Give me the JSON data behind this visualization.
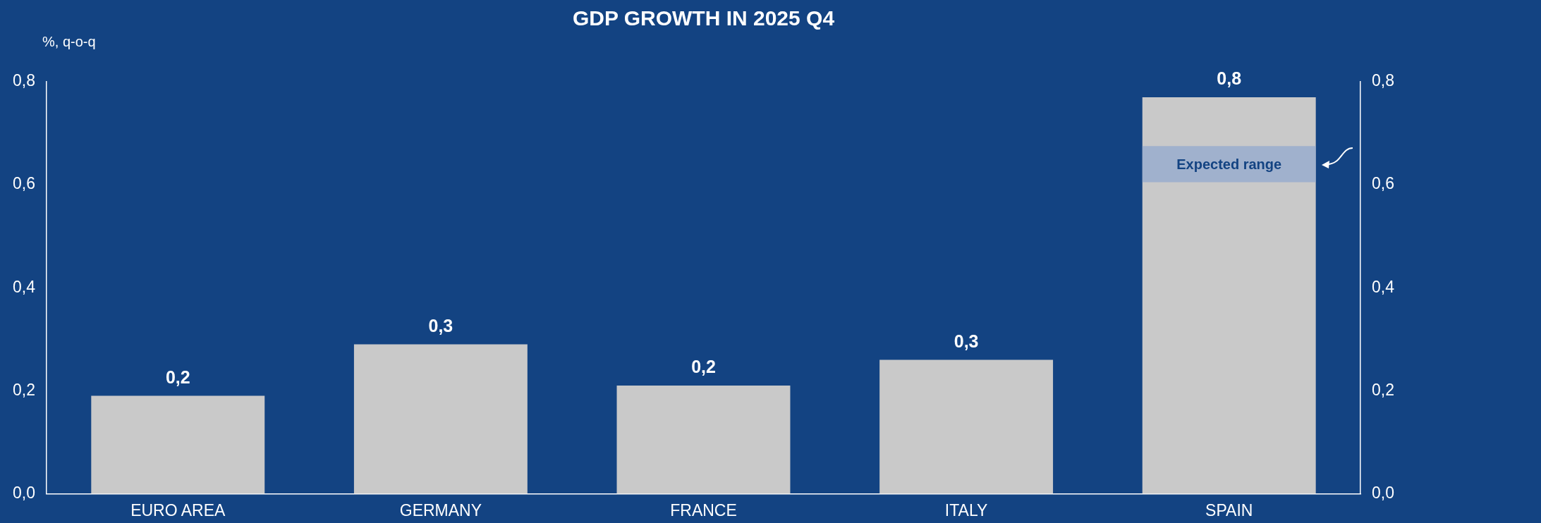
{
  "chart_data": {
    "type": "bar",
    "title": "GDP GROWTH IN 2025 Q4",
    "ylabel": "%, q-o-q",
    "categories": [
      "EURO AREA",
      "GERMANY",
      "FRANCE",
      "ITALY",
      "SPAIN"
    ],
    "values": [
      0.19,
      0.29,
      0.21,
      0.26,
      0.77
    ],
    "value_labels": [
      "0,2",
      "0,3",
      "0,2",
      "0,3",
      "0,8"
    ],
    "color": "#c9c9c9",
    "ylim": [
      0,
      0.8
    ],
    "yticks": [
      {
        "value": 0,
        "label": "0,0"
      },
      {
        "value": 0.2,
        "label": "0,2"
      },
      {
        "value": 0.4,
        "label": "0,4"
      },
      {
        "value": 0.6,
        "label": "0,6"
      },
      {
        "value": 0.8,
        "label": "0,8"
      }
    ],
    "y2lim": [
      0,
      0.8
    ],
    "y2ticks": [
      {
        "value": 0,
        "label": "0,0"
      },
      {
        "value": 0.2,
        "label": "0,2"
      },
      {
        "value": 0.4,
        "label": "0,4"
      },
      {
        "value": 0.6,
        "label": "0,6"
      },
      {
        "value": 0.8,
        "label": "0,8"
      }
    ],
    "bands": [
      {
        "axis": "y",
        "from": 0.605,
        "to": 0.675,
        "label": "Expected range",
        "color": "#8fa6cf"
      }
    ],
    "grid": false,
    "legend": false
  }
}
